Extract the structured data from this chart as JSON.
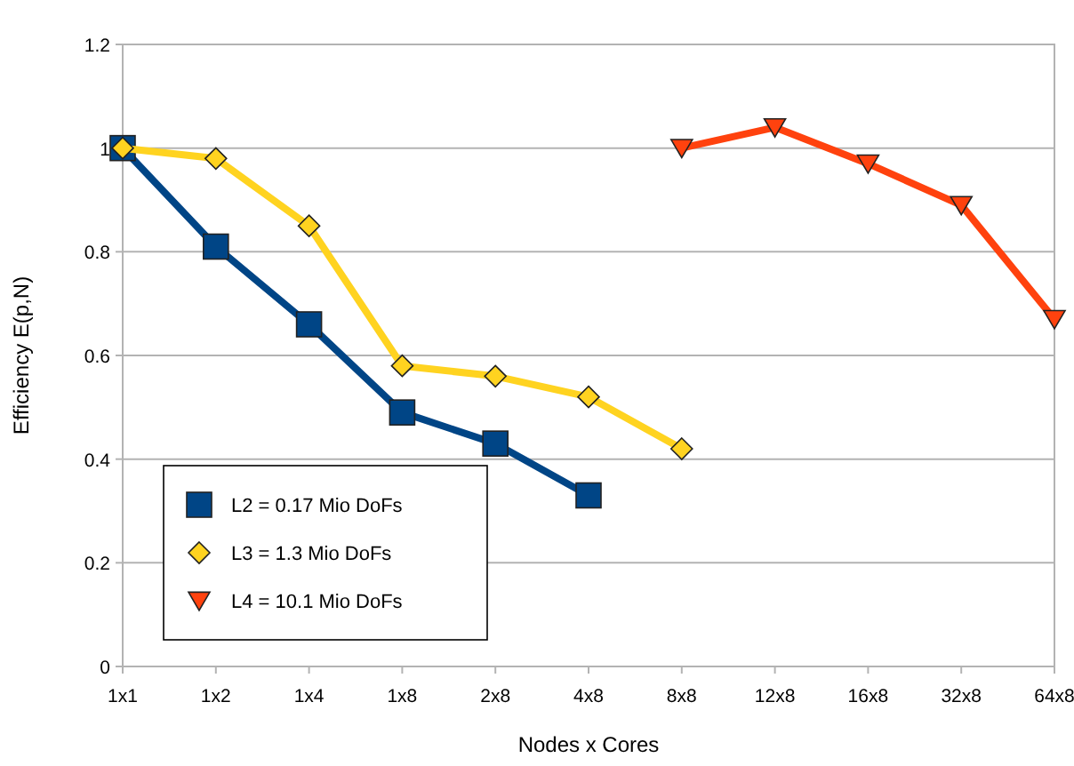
{
  "chart_data": {
    "type": "line",
    "xlabel": "Nodes x Cores",
    "ylabel": "Efficiency E(p,N)",
    "ylim": [
      0,
      1.2
    ],
    "categories": [
      "1x1",
      "1x2",
      "1x4",
      "1x8",
      "2x8",
      "4x8",
      "8x8",
      "12x8",
      "16x8",
      "32x8",
      "64x8"
    ],
    "yticks": [
      0,
      {
        "value": 0.2,
        "label": "0.2"
      },
      {
        "value": 0.4,
        "label": "0.4"
      },
      {
        "value": 0.6,
        "label": "0.6"
      },
      {
        "value": 0.8,
        "label": "0.8"
      },
      1,
      {
        "value": 1.2,
        "label": "1.2"
      }
    ],
    "grid": "y",
    "legend": "bottom left",
    "series": [
      {
        "name": "L2 = 0.17 Mio DoFs",
        "color": "#004586",
        "marker": "square",
        "values": [
          1,
          0.81,
          0.66,
          0.49,
          0.43,
          0.33,
          null,
          null,
          null,
          null,
          null
        ]
      },
      {
        "name": "L3 = 1.3 Mio DoFs",
        "color": "#ffd320",
        "marker": "diamond",
        "values": [
          1,
          0.98,
          0.85,
          0.58,
          0.56,
          0.52,
          0.42,
          null,
          null,
          null,
          null
        ]
      },
      {
        "name": "L4 = 10.1 Mio DoFs",
        "color": "#ff420e",
        "marker": "triangle",
        "values": [
          null,
          null,
          null,
          null,
          null,
          null,
          1.0,
          1.04,
          0.97,
          0.89,
          0.67
        ]
      }
    ]
  }
}
